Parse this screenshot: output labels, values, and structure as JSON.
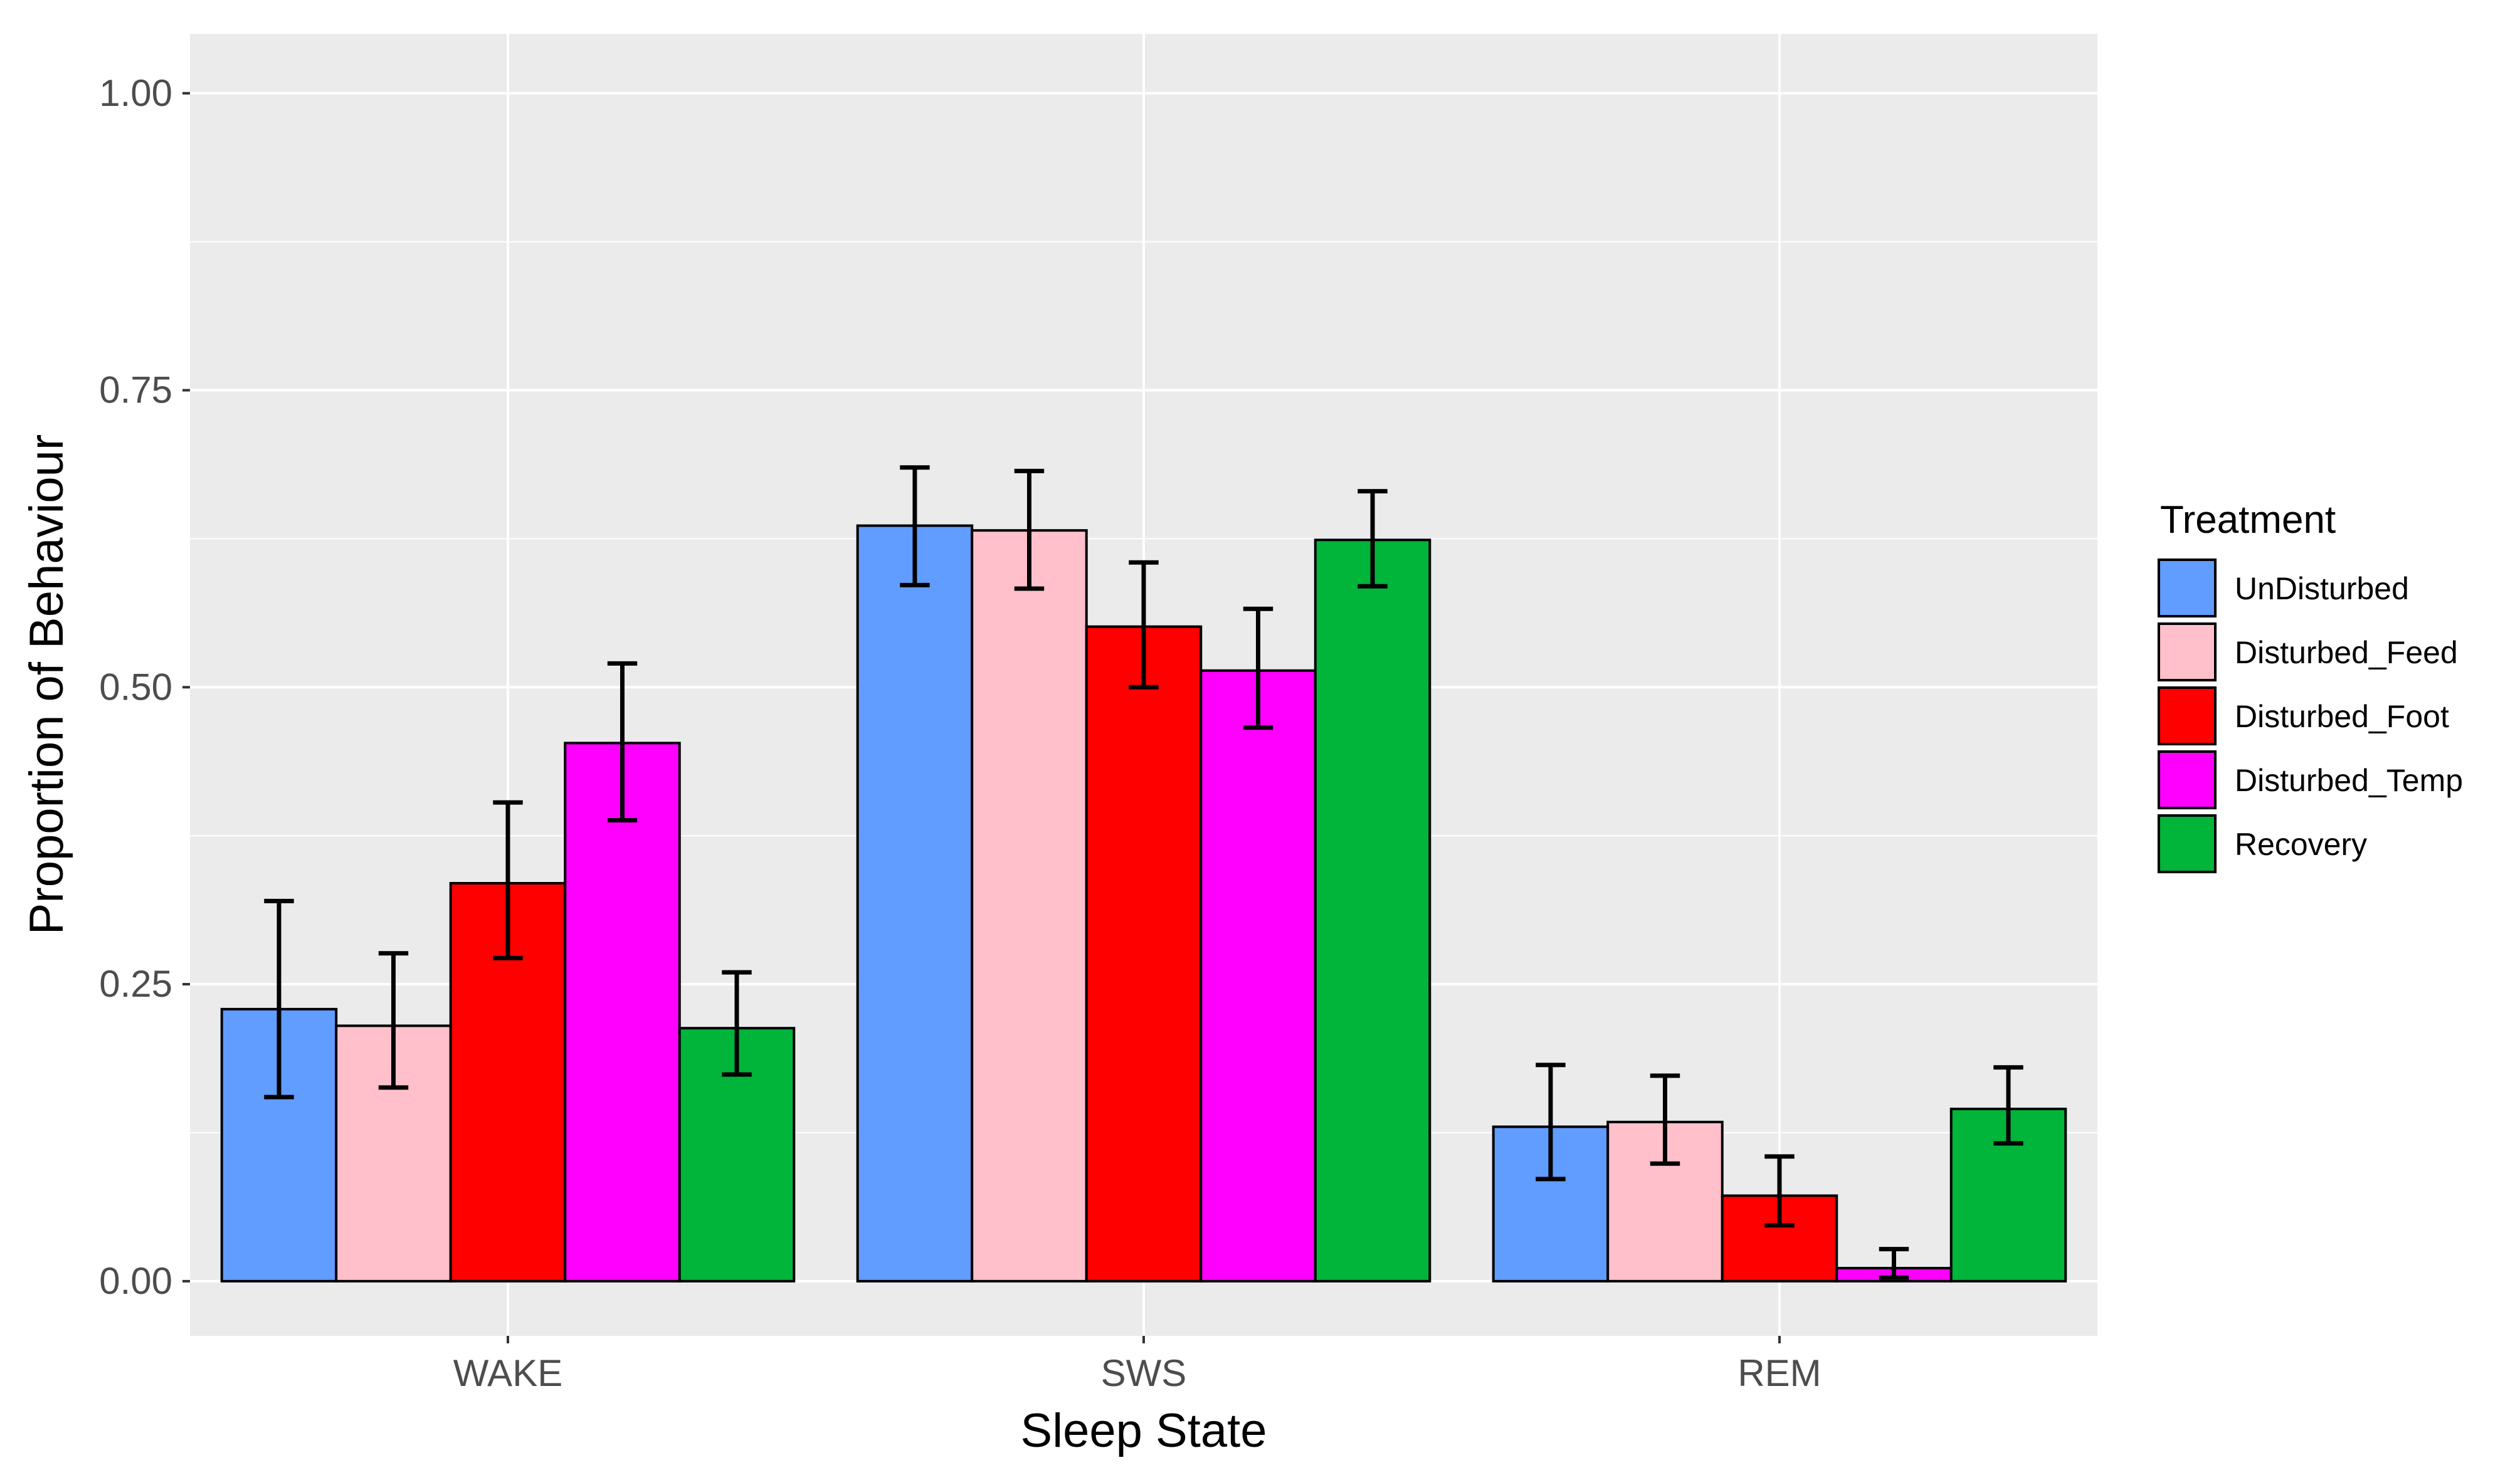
{
  "chart_data": {
    "type": "bar",
    "title": "",
    "xlabel": "Sleep State",
    "ylabel": "Proportion of Behaviour",
    "ylim": [
      -0.046,
      1.05
    ],
    "yticks": [
      0.0,
      0.25,
      0.5,
      0.75,
      1.0
    ],
    "ytick_labels": [
      "0.00",
      "0.25",
      "0.50",
      "0.75",
      "1.00"
    ],
    "categories": [
      "WAKE",
      "SWS",
      "REM"
    ],
    "grid": true,
    "legend_title": "Treatment",
    "legend_position": "right",
    "series": [
      {
        "name": "UnDisturbed",
        "color": "#619CFF",
        "values": [
          0.229,
          0.636,
          0.13
        ],
        "err_low": [
          0.155,
          0.586,
          0.086
        ],
        "err_high": [
          0.32,
          0.685,
          0.182
        ]
      },
      {
        "name": "Disturbed_Feed",
        "color": "#FFC0CB",
        "values": [
          0.215,
          0.632,
          0.134
        ],
        "err_low": [
          0.163,
          0.583,
          0.099
        ],
        "err_high": [
          0.276,
          0.682,
          0.173
        ]
      },
      {
        "name": "Disturbed_Foot",
        "color": "#FF0000",
        "values": [
          0.335,
          0.551,
          0.072
        ],
        "err_low": [
          0.272,
          0.5,
          0.047
        ],
        "err_high": [
          0.403,
          0.605,
          0.105
        ]
      },
      {
        "name": "Disturbed_Temp",
        "color": "#FF00FF",
        "values": [
          0.453,
          0.514,
          0.011
        ],
        "err_low": [
          0.388,
          0.466,
          0.003
        ],
        "err_high": [
          0.52,
          0.566,
          0.027
        ]
      },
      {
        "name": "Recovery",
        "color": "#00B539",
        "values": [
          0.213,
          0.624,
          0.145
        ],
        "err_low": [
          0.174,
          0.585,
          0.116
        ],
        "err_high": [
          0.26,
          0.665,
          0.18
        ]
      }
    ]
  }
}
